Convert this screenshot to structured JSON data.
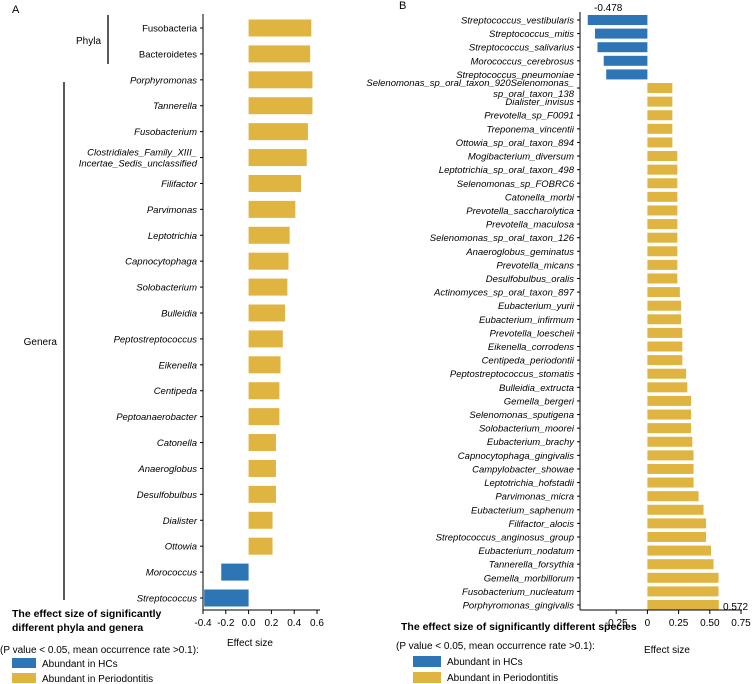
{
  "chart_data": [
    {
      "panel": "A",
      "type": "bar",
      "orientation": "horizontal",
      "groups": [
        {
          "name": "Phyla",
          "categories": [
            "Fusobacteria",
            "Bacteroidetes"
          ]
        },
        {
          "name": "Genera",
          "categories": [
            "Porphyromonas",
            "Tannerella",
            "Fusobacterium",
            "Clostridiales_Family_XIII_Incertae_Sedis_unclassified",
            "Filifactor",
            "Parvimonas",
            "Leptotrichia",
            "Capnocytophaga",
            "Solobacterium",
            "Bulleidia",
            "Peptostreptococcus",
            "Eikenella",
            "Centipeda",
            "Peptoanaerobacter",
            "Catonella",
            "Anaeroglobus",
            "Desulfobulbus",
            "Dialister",
            "Ottowia",
            "Morococcus",
            "Streptococcus"
          ]
        }
      ],
      "categories": [
        "Fusobacteria",
        "Bacteroidetes",
        "Porphyromonas",
        "Tannerella",
        "Fusobacterium",
        "Clostridiales_Family_XIII_Incertae_Sedis_unclassified",
        "Filifactor",
        "Parvimonas",
        "Leptotrichia",
        "Capnocytophaga",
        "Solobacterium",
        "Bulleidia",
        "Peptostreptococcus",
        "Eikenella",
        "Centipeda",
        "Peptoanaerobacter",
        "Catonella",
        "Anaeroglobus",
        "Desulfobulbus",
        "Dialister",
        "Ottowia",
        "Morococcus",
        "Streptococcus"
      ],
      "category_lines": [
        [
          "Fusobacteria"
        ],
        [
          "Bacteroidetes"
        ],
        [
          "Porphyromonas"
        ],
        [
          "Tannerella"
        ],
        [
          "Fusobacterium"
        ],
        [
          "Clostridiales_Family_XIII_",
          "Incertae_Sedis_unclassified"
        ],
        [
          "Filifactor"
        ],
        [
          "Parvimonas"
        ],
        [
          "Leptotrichia"
        ],
        [
          "Capnocytophaga"
        ],
        [
          "Solobacterium"
        ],
        [
          "Bulleidia"
        ],
        [
          "Peptostreptococcus"
        ],
        [
          "Eikenella"
        ],
        [
          "Centipeda"
        ],
        [
          "Peptoanaerobacter"
        ],
        [
          "Catonella"
        ],
        [
          "Anaeroglobus"
        ],
        [
          "Desulfobulbus"
        ],
        [
          "Dialister"
        ],
        [
          "Ottowia"
        ],
        [
          "Morococcus"
        ],
        [
          "Streptococcus"
        ]
      ],
      "italic": [
        false,
        false,
        true,
        true,
        true,
        true,
        true,
        true,
        true,
        true,
        true,
        true,
        true,
        true,
        true,
        true,
        true,
        true,
        true,
        true,
        true,
        true,
        true
      ],
      "values": [
        0.55,
        0.54,
        0.56,
        0.56,
        0.52,
        0.51,
        0.46,
        0.41,
        0.36,
        0.35,
        0.34,
        0.32,
        0.3,
        0.28,
        0.27,
        0.27,
        0.24,
        0.24,
        0.24,
        0.21,
        0.21,
        -0.24,
        -0.39
      ],
      "xlim": [
        -0.4,
        0.6
      ],
      "xticks": [
        "-0.4",
        "-0.2",
        "0.0",
        "0.2",
        "0.4",
        "0.6"
      ],
      "xtick_values": [
        -0.4,
        -0.2,
        0.0,
        0.2,
        0.4,
        0.6
      ],
      "xlabel": "Effect size",
      "title_lines": [
        "The effect size of significantly",
        "different phyla and genera"
      ],
      "note": "(P value < 0.05, mean occurrence rate >0.1):",
      "legend": [
        "Abundant in HCs",
        "Abundant in Periodontitis"
      ]
    },
    {
      "panel": "B",
      "type": "bar",
      "orientation": "horizontal",
      "categories": [
        "Streptococcus_vestibularis",
        "Streptococcus_mitis",
        "Streptococcus_salivarius",
        "Morococcus_cerebrosus",
        "Streptococcus_pneumoniae",
        "Selenomonas_sp_oral_taxon_920Selenomonas_sp_oral_taxon_138",
        "Dialister_invisus",
        "Prevotella_sp_F0091",
        "Treponema_vincentii",
        "Ottowia_sp_oral_taxon_894",
        "Mogibacterium_diversum",
        "Leptotrichia_sp_oral_taxon_498",
        "Selenomonas_sp_FOBRC6",
        "Catonella_morbi",
        "Prevotella_saccharolytica",
        "Prevotella_maculosa",
        "Selenomonas_sp_oral_taxon_126",
        "Anaeroglobus_geminatus",
        "Prevotella_micans",
        "Desulfobulbus_oralis",
        "Actinomyces_sp_oral_taxon_897",
        "Eubacterium_yurii",
        "Eubacterium_infirmum",
        "Prevotella_loescheii",
        "Eikenella_corrodens",
        "Centipeda_periodontii",
        "Peptostreptococcus_stomatis",
        "Bulleidia_extructa",
        "Gemella_bergeri",
        "Selenomonas_sputigena",
        "Solobacterium_moorei",
        "Eubacterium_brachy",
        "Capnocytophaga_gingivalis",
        "Campylobacter_showae",
        "Leptotrichia_hofstadii",
        "Parvimonas_micra",
        "Eubacterium_saphenum",
        "Filifactor_alocis",
        "Streptococcus_anginosus_group",
        "Eubacterium_nodatum",
        "Tannerella_forsythia",
        "Gemella_morbillorum",
        "Fusobacterium_nucleatum",
        "Porphyromonas_gingivalis"
      ],
      "category_lines": [
        [
          "Streptococcus_vestibularis"
        ],
        [
          "Streptococcus_mitis"
        ],
        [
          "Streptococcus_salivarius"
        ],
        [
          "Morococcus_cerebrosus"
        ],
        [
          "Streptococcus_pneumoniae"
        ],
        [
          "Selenomonas_sp_oral_taxon_920Selenomonas_",
          "sp_oral_taxon_138"
        ],
        [
          "Dialister_invisus"
        ],
        [
          "Prevotella_sp_F0091"
        ],
        [
          "Treponema_vincentii"
        ],
        [
          "Ottowia_sp_oral_taxon_894"
        ],
        [
          "Mogibacterium_diversum"
        ],
        [
          "Leptotrichia_sp_oral_taxon_498"
        ],
        [
          "Selenomonas_sp_FOBRC6"
        ],
        [
          "Catonella_morbi"
        ],
        [
          "Prevotella_saccharolytica"
        ],
        [
          "Prevotella_maculosa"
        ],
        [
          "Selenomonas_sp_oral_taxon_126"
        ],
        [
          "Anaeroglobus_geminatus"
        ],
        [
          "Prevotella_micans"
        ],
        [
          "Desulfobulbus_oralis"
        ],
        [
          "Actinomyces_sp_oral_taxon_897"
        ],
        [
          "Eubacterium_yurii"
        ],
        [
          "Eubacterium_infirmum"
        ],
        [
          "Prevotella_loescheii"
        ],
        [
          "Eikenella_corrodens"
        ],
        [
          "Centipeda_periodontii"
        ],
        [
          "Peptostreptococcus_stomatis"
        ],
        [
          "Bulleidia_extructa"
        ],
        [
          "Gemella_bergeri"
        ],
        [
          "Selenomonas_sputigena"
        ],
        [
          "Solobacterium_moorei"
        ],
        [
          "Eubacterium_brachy"
        ],
        [
          "Capnocytophaga_gingivalis"
        ],
        [
          "Campylobacter_showae"
        ],
        [
          "Leptotrichia_hofstadii"
        ],
        [
          "Parvimonas_micra"
        ],
        [
          "Eubacterium_saphenum"
        ],
        [
          "Filifactor_alocis"
        ],
        [
          "Streptococcus_anginosus_group"
        ],
        [
          "Eubacterium_nodatum"
        ],
        [
          "Tannerella_forsythia"
        ],
        [
          "Gemella_morbillorum"
        ],
        [
          "Fusobacterium_nucleatum"
        ],
        [
          "Porphyromonas_gingivalis"
        ]
      ],
      "values": [
        -0.478,
        -0.42,
        -0.4,
        -0.35,
        -0.33,
        0.2,
        0.2,
        0.2,
        0.2,
        0.2,
        0.24,
        0.24,
        0.24,
        0.24,
        0.24,
        0.24,
        0.24,
        0.24,
        0.24,
        0.24,
        0.26,
        0.27,
        0.27,
        0.28,
        0.28,
        0.28,
        0.31,
        0.32,
        0.35,
        0.35,
        0.35,
        0.36,
        0.37,
        0.37,
        0.37,
        0.41,
        0.45,
        0.47,
        0.47,
        0.51,
        0.53,
        0.57,
        0.57,
        0.572
      ],
      "xlim": [
        -0.5,
        0.75
      ],
      "xticks": [
        "-0.25",
        "0",
        "0.25",
        "0.50",
        "0.75"
      ],
      "xtick_values": [
        -0.25,
        0,
        0.25,
        0.5,
        0.75
      ],
      "xlabel": "Effect size",
      "min_label": "-0.478",
      "max_label": "0.572",
      "title": "The effect size of significantly different species",
      "note": "(P value < 0.05, mean occurrence rate >0.1):",
      "legend": [
        "Abundant in HCs",
        "Abundant in Periodontitis"
      ]
    }
  ],
  "colors": {
    "hc": "#2e75b6",
    "periodontitis": "#dfb440"
  }
}
